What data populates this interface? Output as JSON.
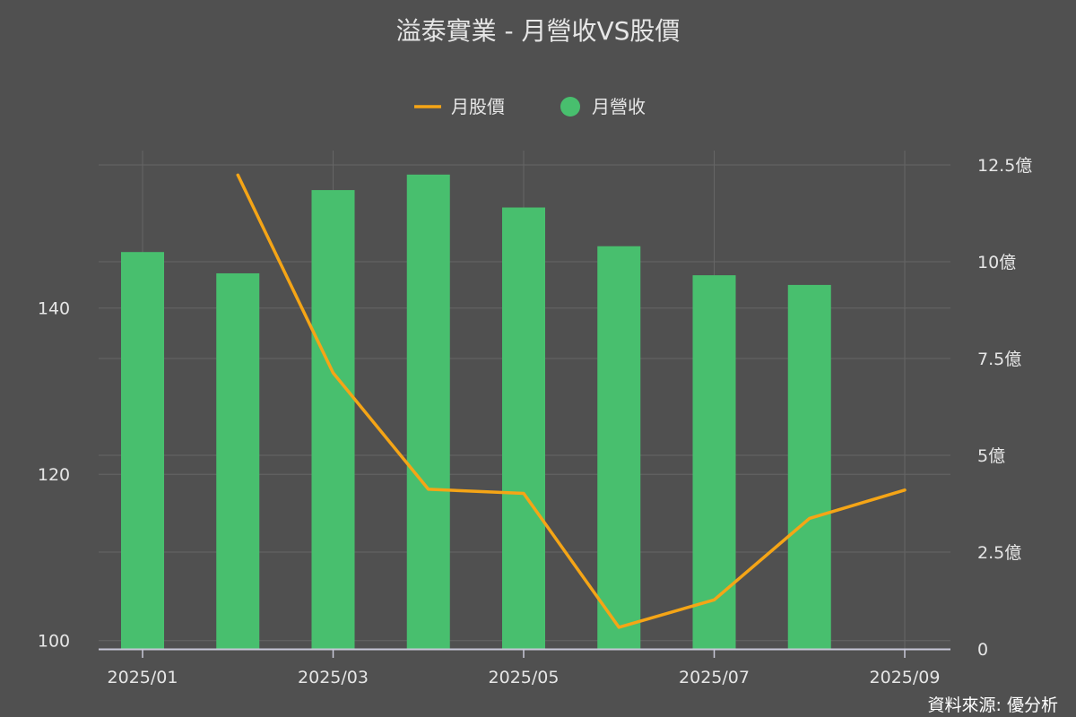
{
  "chart_data": {
    "title": "溢泰實業 - 月營收VS股價",
    "source_note": "資料來源: 優分析",
    "legend": [
      {
        "label": "月股價",
        "marker": "line",
        "color": "#f5a516"
      },
      {
        "label": "月營收",
        "marker": "circle",
        "color": "#48bf6e"
      }
    ],
    "x_months": [
      "2025/01",
      "2025/02",
      "2025/03",
      "2025/04",
      "2025/05",
      "2025/06",
      "2025/07",
      "2025/08",
      "2025/09"
    ],
    "x_tick_labels": [
      "2025/01",
      "2025/03",
      "2025/05",
      "2025/07",
      "2025/09"
    ],
    "left_axis": {
      "ticks": [
        100,
        120,
        140
      ],
      "range": [
        99,
        157
      ]
    },
    "right_axis": {
      "tick_values": [
        0,
        2.5,
        5,
        7.5,
        10,
        12.5
      ],
      "tick_labels": [
        "0",
        "2.5億",
        "5億",
        "7.5億",
        "10億",
        "12.5億"
      ],
      "range": [
        0,
        12.5
      ]
    },
    "series": [
      {
        "name": "月營收",
        "type": "bar",
        "axis": "right",
        "color": "#48bf6e",
        "x": [
          "2025/01",
          "2025/02",
          "2025/03",
          "2025/04",
          "2025/05",
          "2025/06",
          "2025/07",
          "2025/08"
        ],
        "values": [
          10.25,
          9.7,
          11.85,
          12.25,
          11.4,
          10.4,
          9.65,
          9.4
        ]
      },
      {
        "name": "月股價",
        "type": "line",
        "axis": "left",
        "color": "#f5a516",
        "x": [
          "2025/02",
          "2025/03",
          "2025/04",
          "2025/05",
          "2025/06",
          "2025/07",
          "2025/08",
          "2025/09"
        ],
        "values": [
          156,
          132.2,
          118.2,
          117.7,
          101.6,
          104.9,
          114.7,
          118.1
        ]
      }
    ]
  }
}
